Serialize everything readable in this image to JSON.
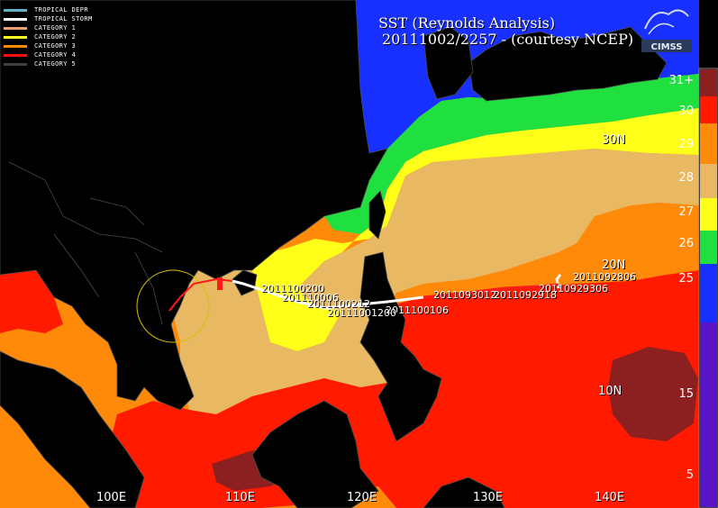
{
  "title": {
    "line1": "SST (Reynolds Analysis)",
    "line2": "20111002/2257 - (courtesy NCEP)"
  },
  "logo_text": "CIMSS",
  "legend": [
    {
      "label": "TROPICAL DEPR",
      "color": "#5fb4c8"
    },
    {
      "label": "TROPICAL STORM",
      "color": "#ffffff"
    },
    {
      "label": "CATEGORY 1",
      "color": "#f0a070"
    },
    {
      "label": "CATEGORY 2",
      "color": "#ffff20"
    },
    {
      "label": "CATEGORY 3",
      "color": "#ff8c00"
    },
    {
      "label": "CATEGORY 4",
      "color": "#ff1010"
    },
    {
      "label": "CATEGORY 5",
      "color": "#404040"
    }
  ],
  "colorbar": [
    {
      "label": "31+",
      "color": "#8c2020"
    },
    {
      "label": "30",
      "color": "#ff1a00"
    },
    {
      "label": "29",
      "color": "#ff8a0a"
    },
    {
      "label": "28",
      "color": "#e8b862"
    },
    {
      "label": "27",
      "color": "#ffff1a"
    },
    {
      "label": "26",
      "color": "#20e040"
    },
    {
      "label": "25",
      "color": "#1830ff"
    },
    {
      "label": "15",
      "color": "#5a14c8"
    },
    {
      "label": "5",
      "color": "#5a14c8"
    }
  ],
  "lat_labels": [
    "30N",
    "20N",
    "10N"
  ],
  "lon_labels": [
    "100E",
    "110E",
    "120E",
    "130E",
    "140E"
  ],
  "track_labels": [
    "2011092806",
    "20110929306",
    "2011092918",
    "2011093012",
    "2011100106",
    "20111001200",
    "201110006",
    "2011100212",
    "2011100200"
  ],
  "colors": {
    "land": "#000000",
    "warm_pool": "#8c2020",
    "sst_30": "#ff1a00",
    "sst_29": "#ff8a0a",
    "sst_28": "#e8b862",
    "sst_27": "#ffff1a",
    "sst_26": "#20e040",
    "sst_cold": "#1830ff"
  }
}
